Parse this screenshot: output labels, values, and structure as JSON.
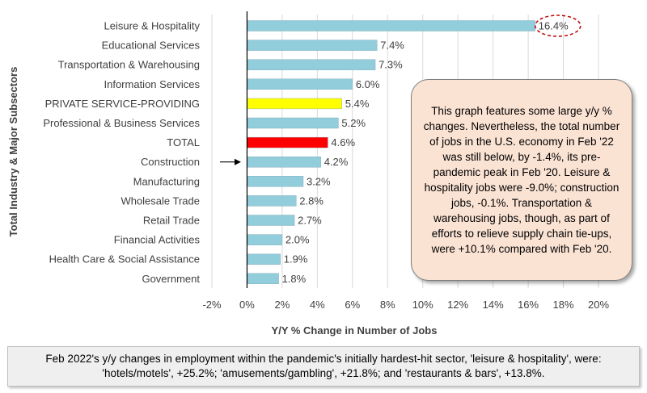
{
  "chart_data": {
    "type": "bar",
    "orientation": "horizontal",
    "categories": [
      "Leisure & Hospitality",
      "Educational Services",
      "Transportation & Warehousing",
      "Information Services",
      "PRIVATE SERVICE-PROVIDING",
      "Professional & Business Services",
      "TOTAL",
      "Construction",
      "Manufacturing",
      "Wholesale Trade",
      "Retail Trade",
      "Financial Activities",
      "Health Care & Social Assistance",
      "Government"
    ],
    "values": [
      16.4,
      7.4,
      7.3,
      6.0,
      5.4,
      5.2,
      4.6,
      4.2,
      3.2,
      2.8,
      2.7,
      2.0,
      1.9,
      1.8
    ],
    "data_labels": [
      "16.4%",
      "7.4%",
      "7.3%",
      "6.0%",
      "5.4%",
      "5.2%",
      "4.6%",
      "4.2%",
      "3.2%",
      "2.8%",
      "2.7%",
      "2.0%",
      "1.9%",
      "1.8%"
    ],
    "bar_colors": [
      "#92cddc",
      "#92cddc",
      "#92cddc",
      "#92cddc",
      "#ffff00",
      "#92cddc",
      "#ff0000",
      "#92cddc",
      "#92cddc",
      "#92cddc",
      "#92cddc",
      "#92cddc",
      "#92cddc",
      "#92cddc"
    ],
    "xlim": [
      -2,
      20
    ],
    "xticks": [
      -2,
      0,
      2,
      4,
      6,
      8,
      10,
      12,
      14,
      16,
      18,
      20
    ],
    "xtick_labels": [
      "-2%",
      "0%",
      "2%",
      "4%",
      "6%",
      "8%",
      "10%",
      "12%",
      "14%",
      "16%",
      "18%",
      "20%"
    ],
    "xlabel": "Y/Y % Change in Number of Jobs",
    "ylabel": "Total Industry & Major Subsectors",
    "grid": "vertical",
    "highlight_circle_category": "Leisure & Hospitality",
    "arrow_category": "Construction"
  },
  "colors": {
    "default_bar": "#92cddc",
    "private_service_bar": "#ffff00",
    "total_bar": "#ff0000",
    "highlight_circle": "#c00000",
    "callout_background": "#fbe3d4",
    "footer_background": "#efefef"
  },
  "annotation": {
    "text": "This graph features some large y/y % changes. Nevertheless, the total number of jobs in the U.S. economy in Feb '22 was still below, by -1.4%, its pre-pandemic peak in Feb '20. Leisure & hospitality jobs were -9.0%; construction jobs, -0.1%. Transportation & warehousing jobs, though, as part of efforts to relieve supply chain tie-ups, were +10.1% compared with Feb '20."
  },
  "footer": {
    "text": "Feb 2022's y/y changes in employment within the pandemic's initially hardest-hit sector, 'leisure & hospitality', were: 'hotels/motels', +25.2%; 'amusements/gambling', +21.8%; and 'restaurants & bars', +13.8%."
  }
}
